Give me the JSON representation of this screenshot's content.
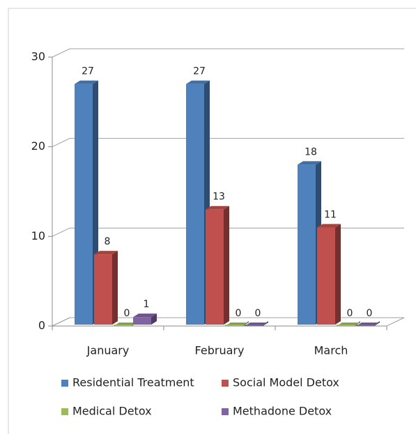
{
  "chart_data": {
    "type": "bar3d",
    "categories": [
      "January",
      "February",
      "March"
    ],
    "series": [
      {
        "name": "Residential Treatment",
        "color": "#4f81bd",
        "values": [
          27,
          27,
          18
        ]
      },
      {
        "name": "Social Model Detox",
        "color": "#c0504d",
        "values": [
          8,
          13,
          11
        ]
      },
      {
        "name": "Medical Detox",
        "color": "#9bbb59",
        "values": [
          0,
          0,
          0
        ]
      },
      {
        "name": "Methadone Detox",
        "color": "#8064a2",
        "values": [
          1,
          0,
          0
        ]
      }
    ],
    "ylim": [
      0,
      30
    ],
    "yticks": [
      0,
      10,
      20,
      30
    ],
    "grid": true,
    "legend": "bottom"
  }
}
